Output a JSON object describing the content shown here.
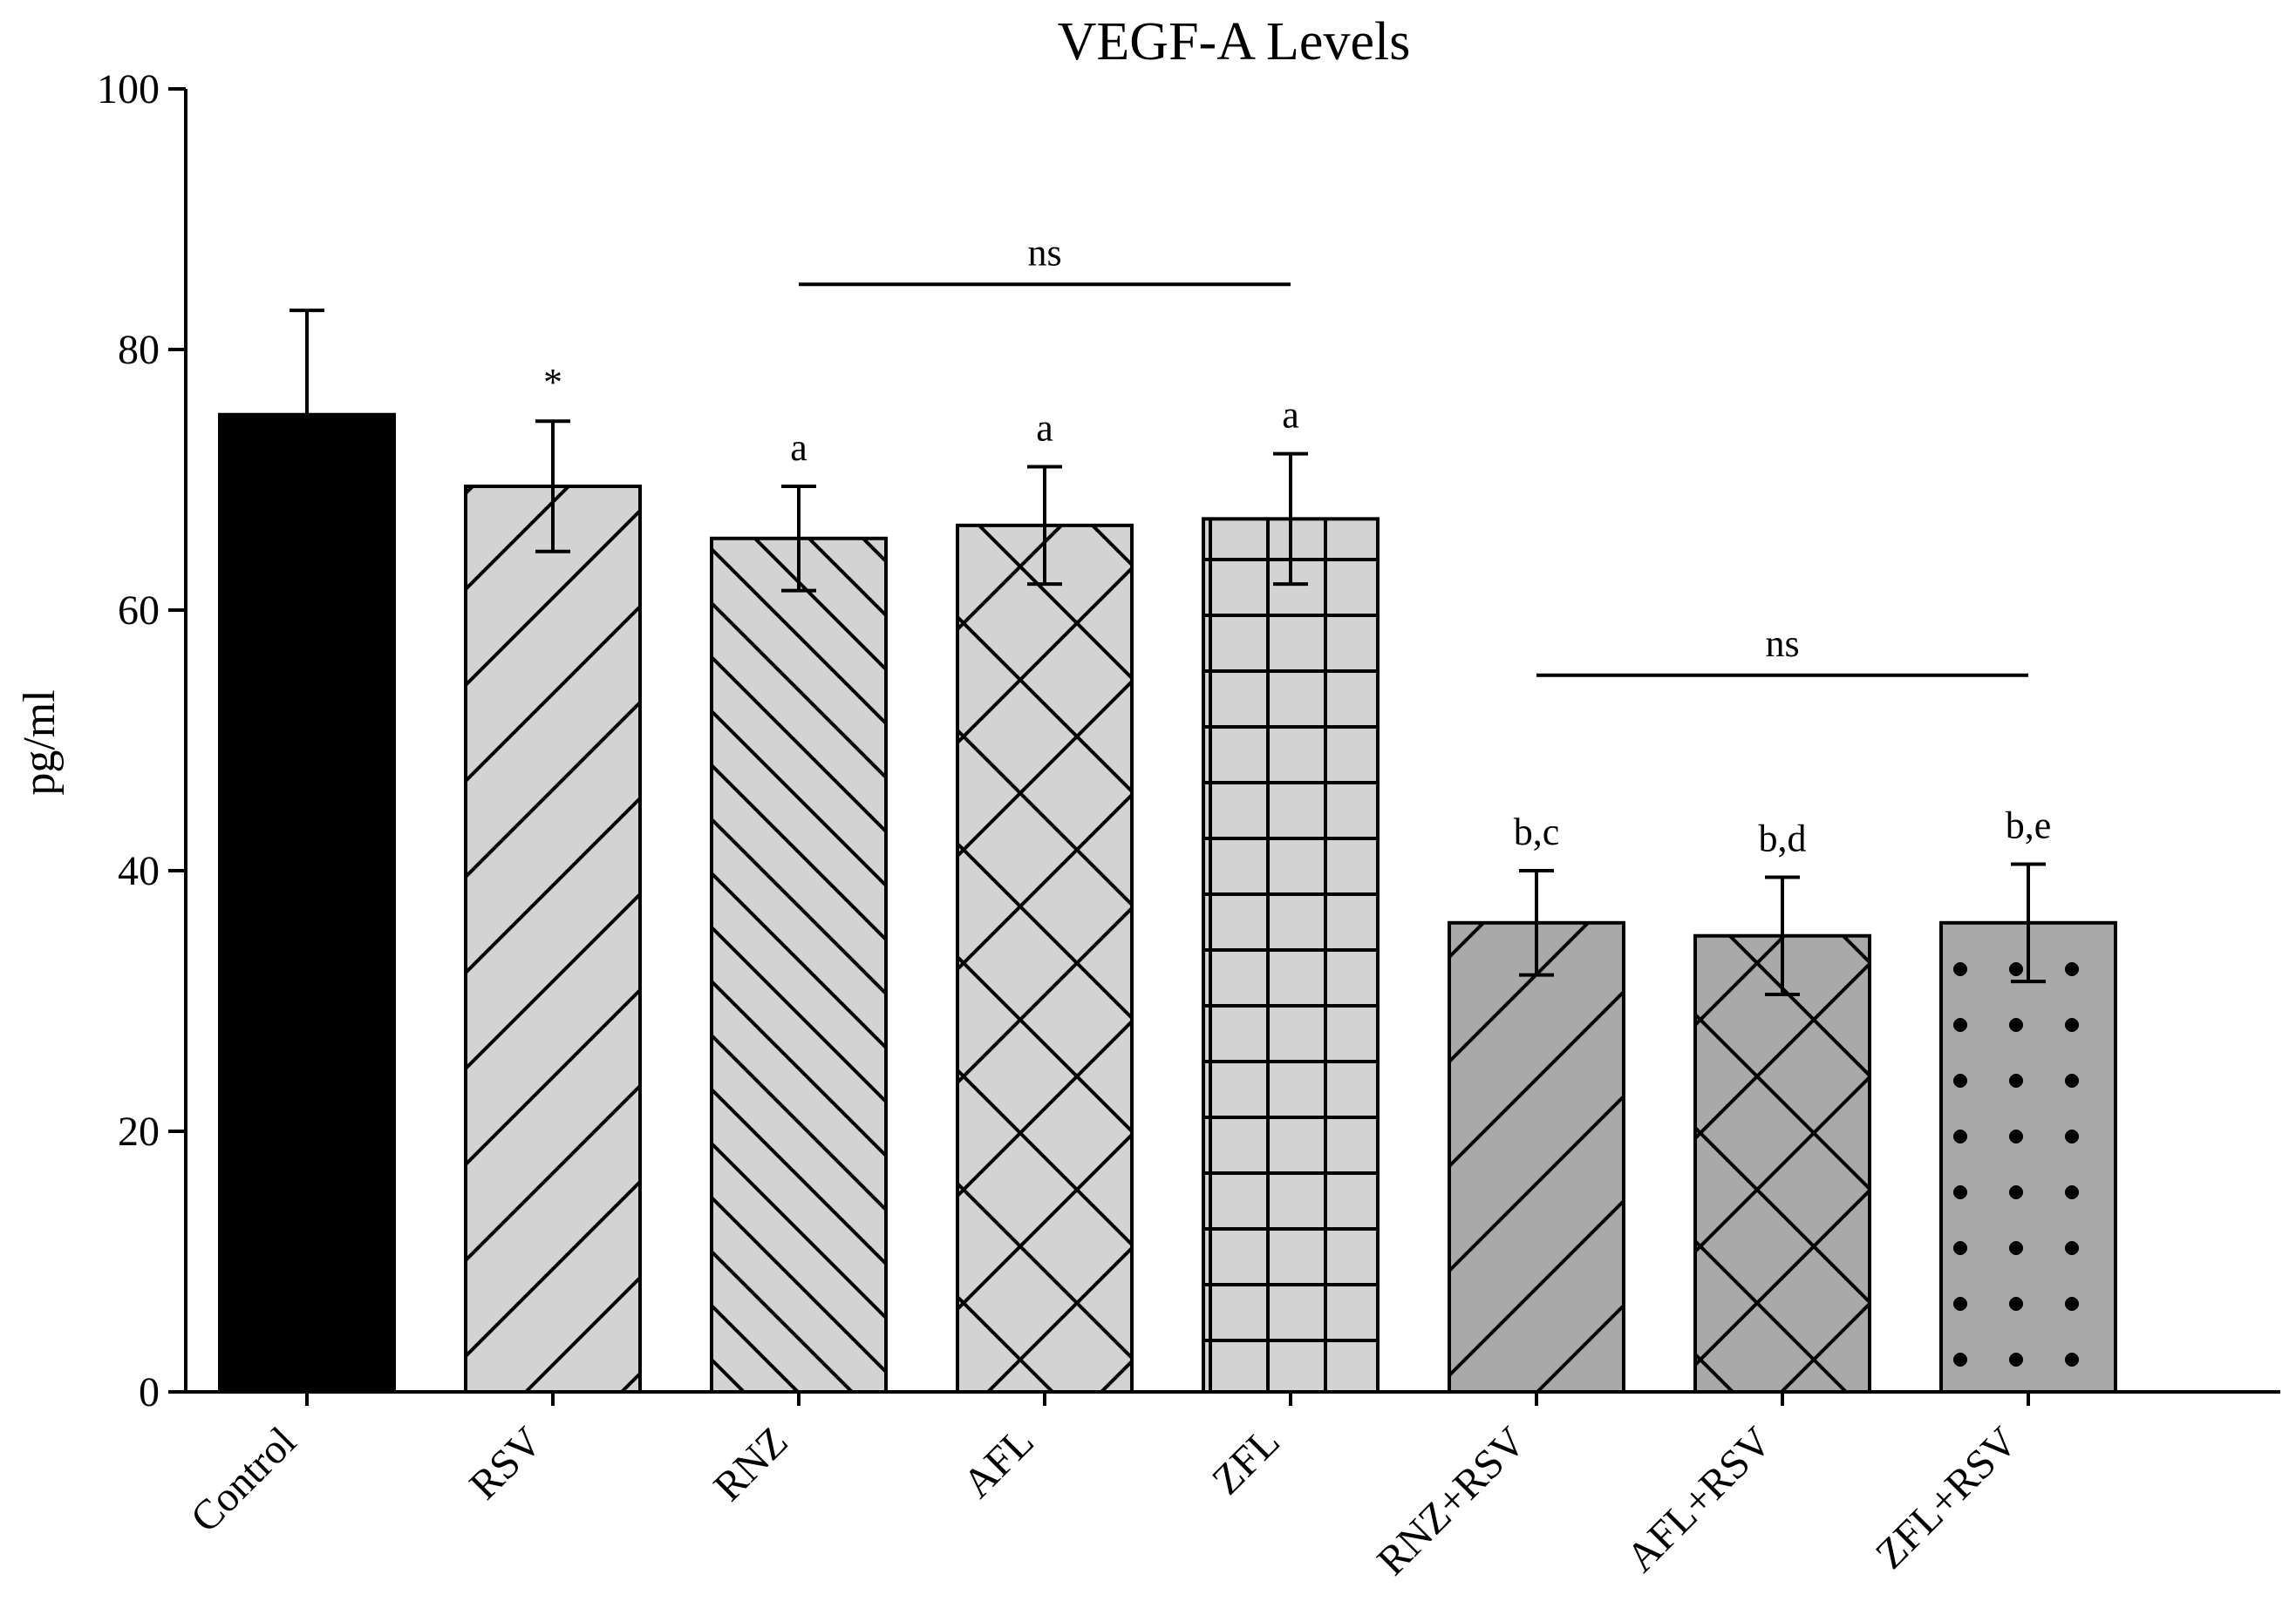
{
  "chart_data": {
    "type": "bar",
    "title": "VEGF-A Levels",
    "xlabel": "",
    "ylabel": "pg/ml",
    "ylim": [
      0,
      100
    ],
    "yticks": [
      0,
      20,
      40,
      60,
      80,
      100
    ],
    "grid": false,
    "categories": [
      "Control",
      "RSV",
      "RNZ",
      "AFL",
      "ZFL",
      "RNZ+RSV",
      "AFL+RSV",
      "ZFL+RSV"
    ],
    "values": [
      75,
      69.5,
      65.5,
      66.5,
      67,
      36,
      35,
      36
    ],
    "errors": [
      8,
      5,
      4,
      4.5,
      5,
      4,
      4.5,
      4.5
    ],
    "annotations": [
      "",
      "*",
      "a",
      "a",
      "a",
      "b,c",
      "b,d",
      "b,e"
    ],
    "fills": [
      "solid-black",
      "diag-up",
      "diag-down",
      "crosshatch",
      "grid",
      "diag-up-dark",
      "crosshatch-dark",
      "dots-dark"
    ],
    "colors": {
      "light": "#d3d3d3",
      "dark": "#a9a9a9",
      "black": "#000000"
    },
    "significance": [
      {
        "from": "RNZ",
        "to": "ZFL",
        "label": "ns",
        "y": 85
      },
      {
        "from": "RNZ+RSV",
        "to": "ZFL+RSV",
        "label": "ns",
        "y": 55
      }
    ]
  }
}
